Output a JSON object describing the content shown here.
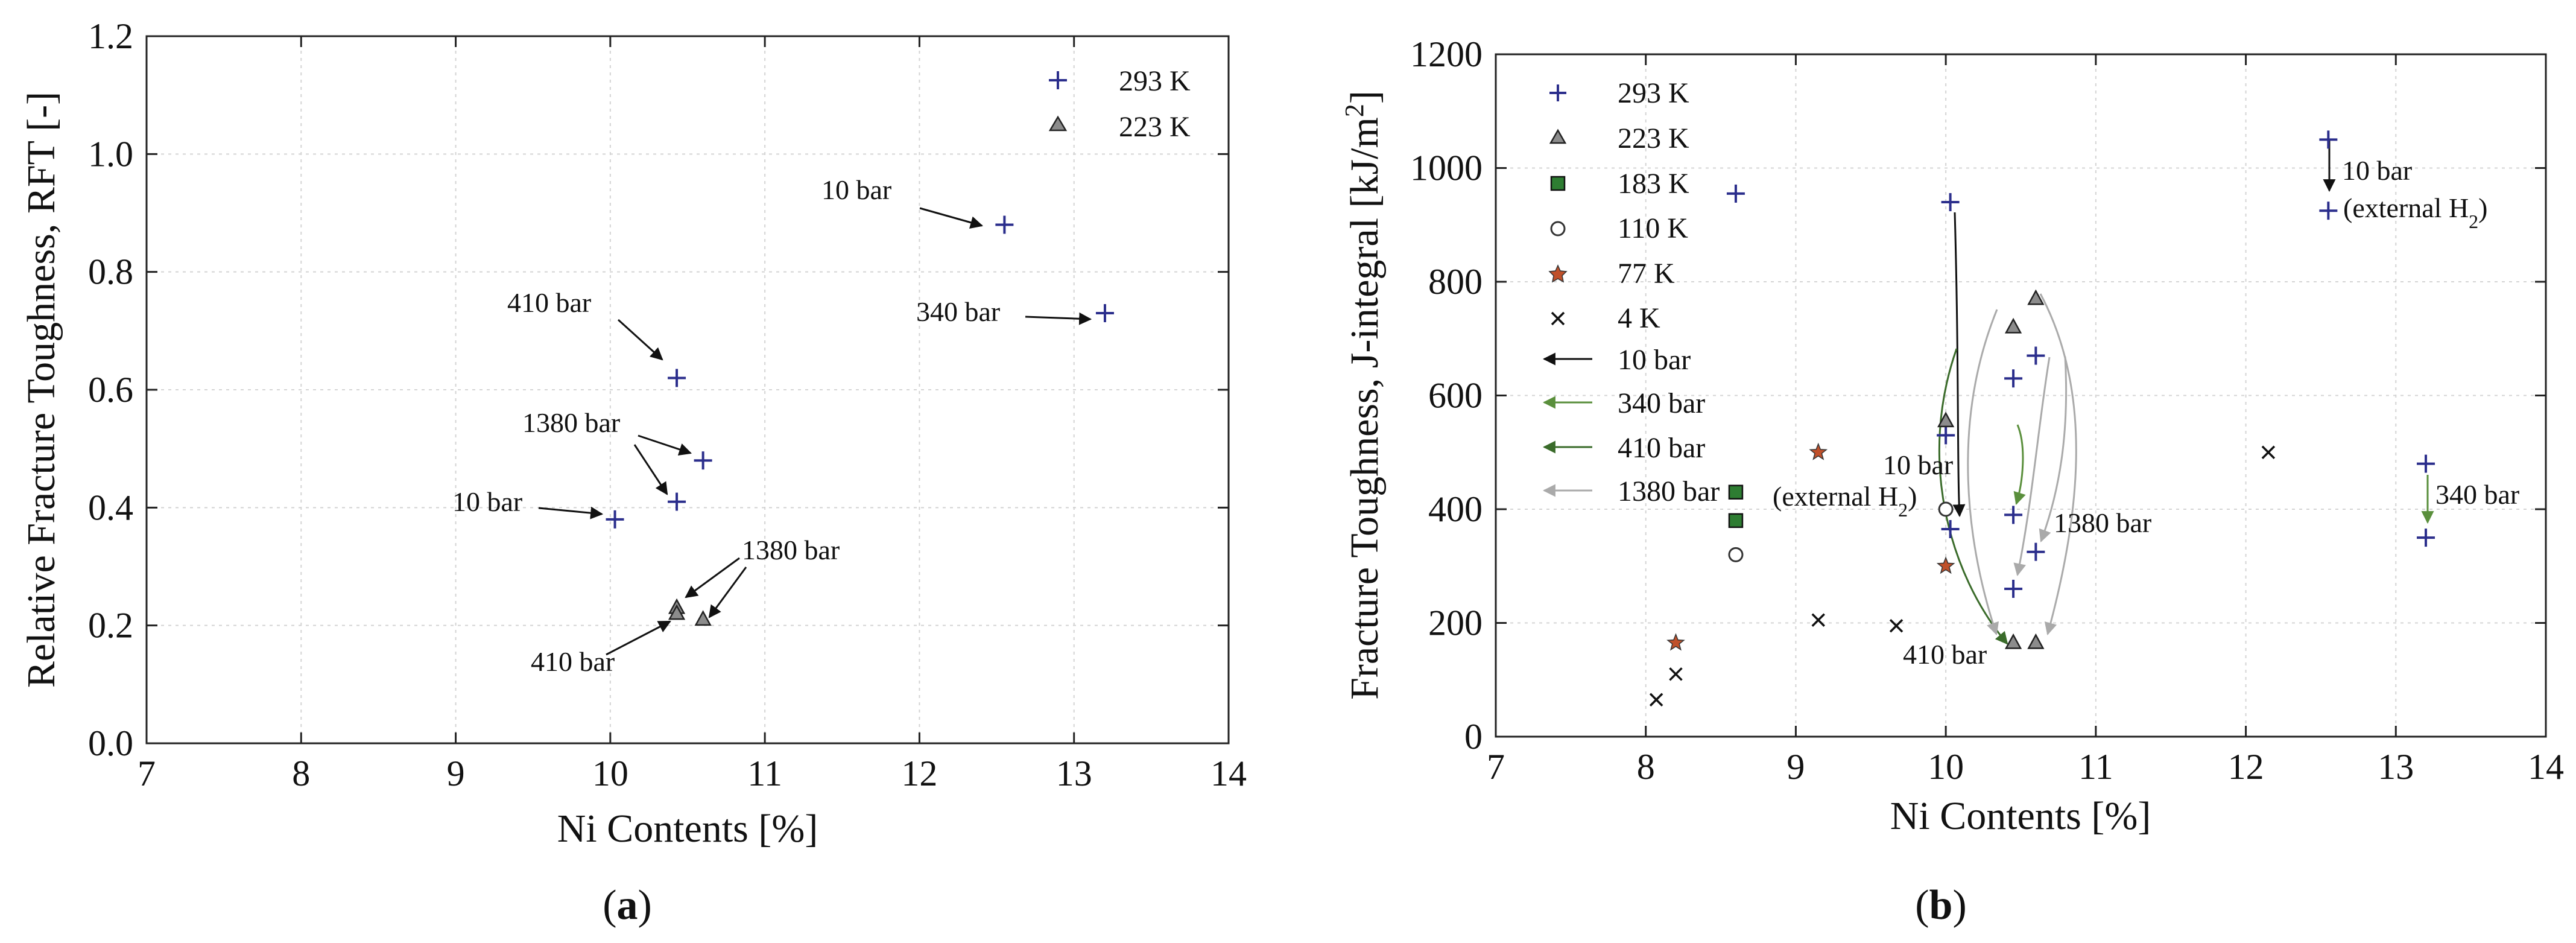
{
  "figure": {
    "panel_a_label": "a",
    "panel_b_label": "b"
  },
  "chart_data": [
    {
      "type": "scatter",
      "panel": "a",
      "title": "",
      "xlabel": "Ni Contents [%]",
      "ylabel": "Relative Fracture Toughness, RFT [-]",
      "xlim": [
        7,
        14
      ],
      "ylim": [
        0,
        1.2
      ],
      "xticks": [
        7,
        8,
        9,
        10,
        11,
        12,
        13,
        14
      ],
      "yticks": [
        0.0,
        0.2,
        0.4,
        0.6,
        0.8,
        1.0,
        1.2
      ],
      "yticklabels": [
        "0.0",
        "0.2",
        "0.4",
        "0.6",
        "0.8",
        "1.0",
        "1.2"
      ],
      "grid": true,
      "legend_position": "top-right",
      "series": [
        {
          "name": "293 K",
          "marker": "plus",
          "color": "#2b2e8c",
          "points": [
            [
              12.55,
              0.88
            ],
            [
              13.2,
              0.73
            ],
            [
              10.43,
              0.62
            ],
            [
              10.6,
              0.48
            ],
            [
              10.43,
              0.41
            ],
            [
              10.03,
              0.38
            ]
          ]
        },
        {
          "name": "223 K",
          "marker": "triangle",
          "color": "#8c8c8c",
          "points": [
            [
              10.43,
              0.23
            ],
            [
              10.43,
              0.22
            ],
            [
              10.6,
              0.21
            ]
          ]
        }
      ],
      "annotations": [
        {
          "text": "10 bar",
          "target": [
            12.4,
            0.885
          ]
        },
        {
          "text": "340 bar",
          "target": [
            13.07,
            0.725
          ]
        },
        {
          "text": "410 bar",
          "target": [
            10.35,
            0.655
          ]
        },
        {
          "text": "1380 bar",
          "target": [
            10.52,
            0.495
          ]
        },
        {
          "text": "1380 bar",
          "target": [
            10.36,
            0.435
          ]
        },
        {
          "text": "10 bar",
          "target": [
            9.95,
            0.385
          ]
        },
        {
          "text": "1380 bar",
          "target": [
            10.5,
            0.26
          ]
        },
        {
          "text": "1380 bar",
          "target": [
            10.65,
            0.22
          ]
        },
        {
          "text": "410 bar",
          "target": [
            10.39,
            0.205
          ]
        }
      ]
    },
    {
      "type": "scatter",
      "panel": "b",
      "title": "",
      "xlabel": "Ni Contents [%]",
      "ylabel": "Fracture Toughness, J-integral [kJ/m²]",
      "xlim": [
        7,
        14
      ],
      "ylim": [
        0,
        1200
      ],
      "xticks": [
        7,
        8,
        9,
        10,
        11,
        12,
        13,
        14
      ],
      "yticks": [
        0,
        200,
        400,
        600,
        800,
        1000,
        1200
      ],
      "grid": true,
      "legend_position": "top-left",
      "series": [
        {
          "name": "293 K",
          "marker": "plus",
          "color": "#2b2e8c",
          "points": [
            [
              8.6,
              955
            ],
            [
              10.03,
              940
            ],
            [
              12.55,
              1050
            ],
            [
              12.55,
              925
            ],
            [
              10.6,
              670
            ],
            [
              10.45,
              630
            ],
            [
              10.0,
              530
            ],
            [
              10.45,
              390
            ],
            [
              10.03,
              365
            ],
            [
              10.6,
              325
            ],
            [
              10.45,
              260
            ],
            [
              13.2,
              480
            ],
            [
              13.2,
              350
            ]
          ]
        },
        {
          "name": "223 K",
          "marker": "triangle",
          "color": "#8c8c8c",
          "points": [
            [
              10.6,
              770
            ],
            [
              10.45,
              720
            ],
            [
              10.0,
              555
            ],
            [
              10.45,
              165
            ],
            [
              10.6,
              165
            ]
          ]
        },
        {
          "name": "183 K",
          "marker": "square",
          "color": "#2e7d32",
          "points": [
            [
              8.6,
              430
            ],
            [
              8.6,
              380
            ]
          ]
        },
        {
          "name": "110 K",
          "marker": "circle",
          "color": "#333333",
          "points": [
            [
              8.6,
              320
            ],
            [
              10.0,
              400
            ]
          ]
        },
        {
          "name": "77 K",
          "marker": "star",
          "color": "#c0502a",
          "points": [
            [
              9.15,
              500
            ],
            [
              10.0,
              300
            ],
            [
              8.2,
              165
            ]
          ]
        },
        {
          "name": "4 K",
          "marker": "cross",
          "color": "#111111",
          "points": [
            [
              12.15,
              500
            ],
            [
              9.15,
              205
            ],
            [
              9.67,
              195
            ],
            [
              8.2,
              110
            ],
            [
              8.07,
              65
            ]
          ]
        }
      ],
      "pressure_legend": [
        {
          "name": "10 bar",
          "color": "#111111"
        },
        {
          "name": "340 bar",
          "color": "#5a8f3c"
        },
        {
          "name": "410 bar",
          "color": "#3a6b2a"
        },
        {
          "name": "1380 bar",
          "color": "#aaaaaa"
        }
      ],
      "annotations": [
        {
          "text": "10 bar",
          "line2": "(external H",
          "sub": "2",
          "line2_end": ")",
          "position": "top-right"
        },
        {
          "text": "340 bar",
          "position": "right"
        },
        {
          "text": "10 bar",
          "line2": "(external H",
          "sub": "2",
          "line2_end": ")",
          "position": "left-center"
        },
        {
          "text": "1380 bar",
          "position": "center"
        },
        {
          "text": "410 bar",
          "position": "bottom-center"
        }
      ]
    }
  ]
}
